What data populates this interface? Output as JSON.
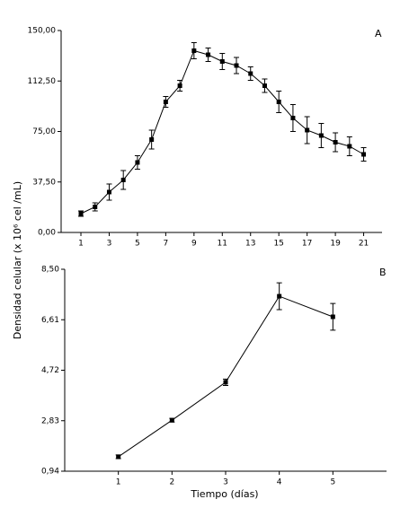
{
  "ylabel": "Densidad celular  (x 10⁶ cel /mL)",
  "xlabel": "Tiempo (días)",
  "chart_data": [
    {
      "type": "line",
      "annotation": "A",
      "color": "#000000",
      "x": [
        1,
        2,
        3,
        4,
        5,
        6,
        7,
        8,
        9,
        10,
        11,
        12,
        13,
        14,
        15,
        16,
        17,
        18,
        19,
        20,
        21
      ],
      "values": [
        14,
        19,
        30,
        39,
        52,
        69,
        97,
        109,
        135,
        132,
        127,
        124,
        118,
        109,
        97,
        85,
        76,
        72,
        67,
        64,
        58
      ],
      "errors": [
        2,
        3,
        6,
        7,
        5,
        7,
        4,
        4,
        6,
        5,
        6,
        6,
        5,
        5,
        8,
        10,
        10,
        9,
        7,
        7,
        5
      ],
      "xlim": [
        -0.4,
        22.3
      ],
      "xticks": [
        1,
        3,
        5,
        7,
        9,
        11,
        13,
        15,
        17,
        19,
        21
      ],
      "ylim": [
        0,
        150
      ],
      "yticks": [
        {
          "value": 0,
          "label": "0,00"
        },
        {
          "value": 37.5,
          "label": "37,50"
        },
        {
          "value": 75,
          "label": "75,00"
        },
        {
          "value": 112.5,
          "label": "112,50"
        },
        {
          "value": 150,
          "label": "150,00"
        }
      ]
    },
    {
      "type": "line",
      "annotation": "B",
      "color": "#000000",
      "x": [
        1,
        2,
        3,
        4,
        5
      ],
      "values": [
        1.48,
        2.85,
        4.27,
        7.49,
        6.72
      ],
      "errors": [
        0.07,
        0.07,
        0.12,
        0.5,
        0.5
      ],
      "xlim": [
        0,
        6
      ],
      "xticks": [
        1,
        2,
        3,
        4,
        5
      ],
      "ylim": [
        0.94,
        8.5
      ],
      "yticks": [
        {
          "value": 0.94,
          "label": "0,94"
        },
        {
          "value": 2.83,
          "label": "2,83"
        },
        {
          "value": 4.72,
          "label": "4,72"
        },
        {
          "value": 6.61,
          "label": "6,61"
        },
        {
          "value": 8.5,
          "label": "8,50"
        }
      ]
    }
  ]
}
